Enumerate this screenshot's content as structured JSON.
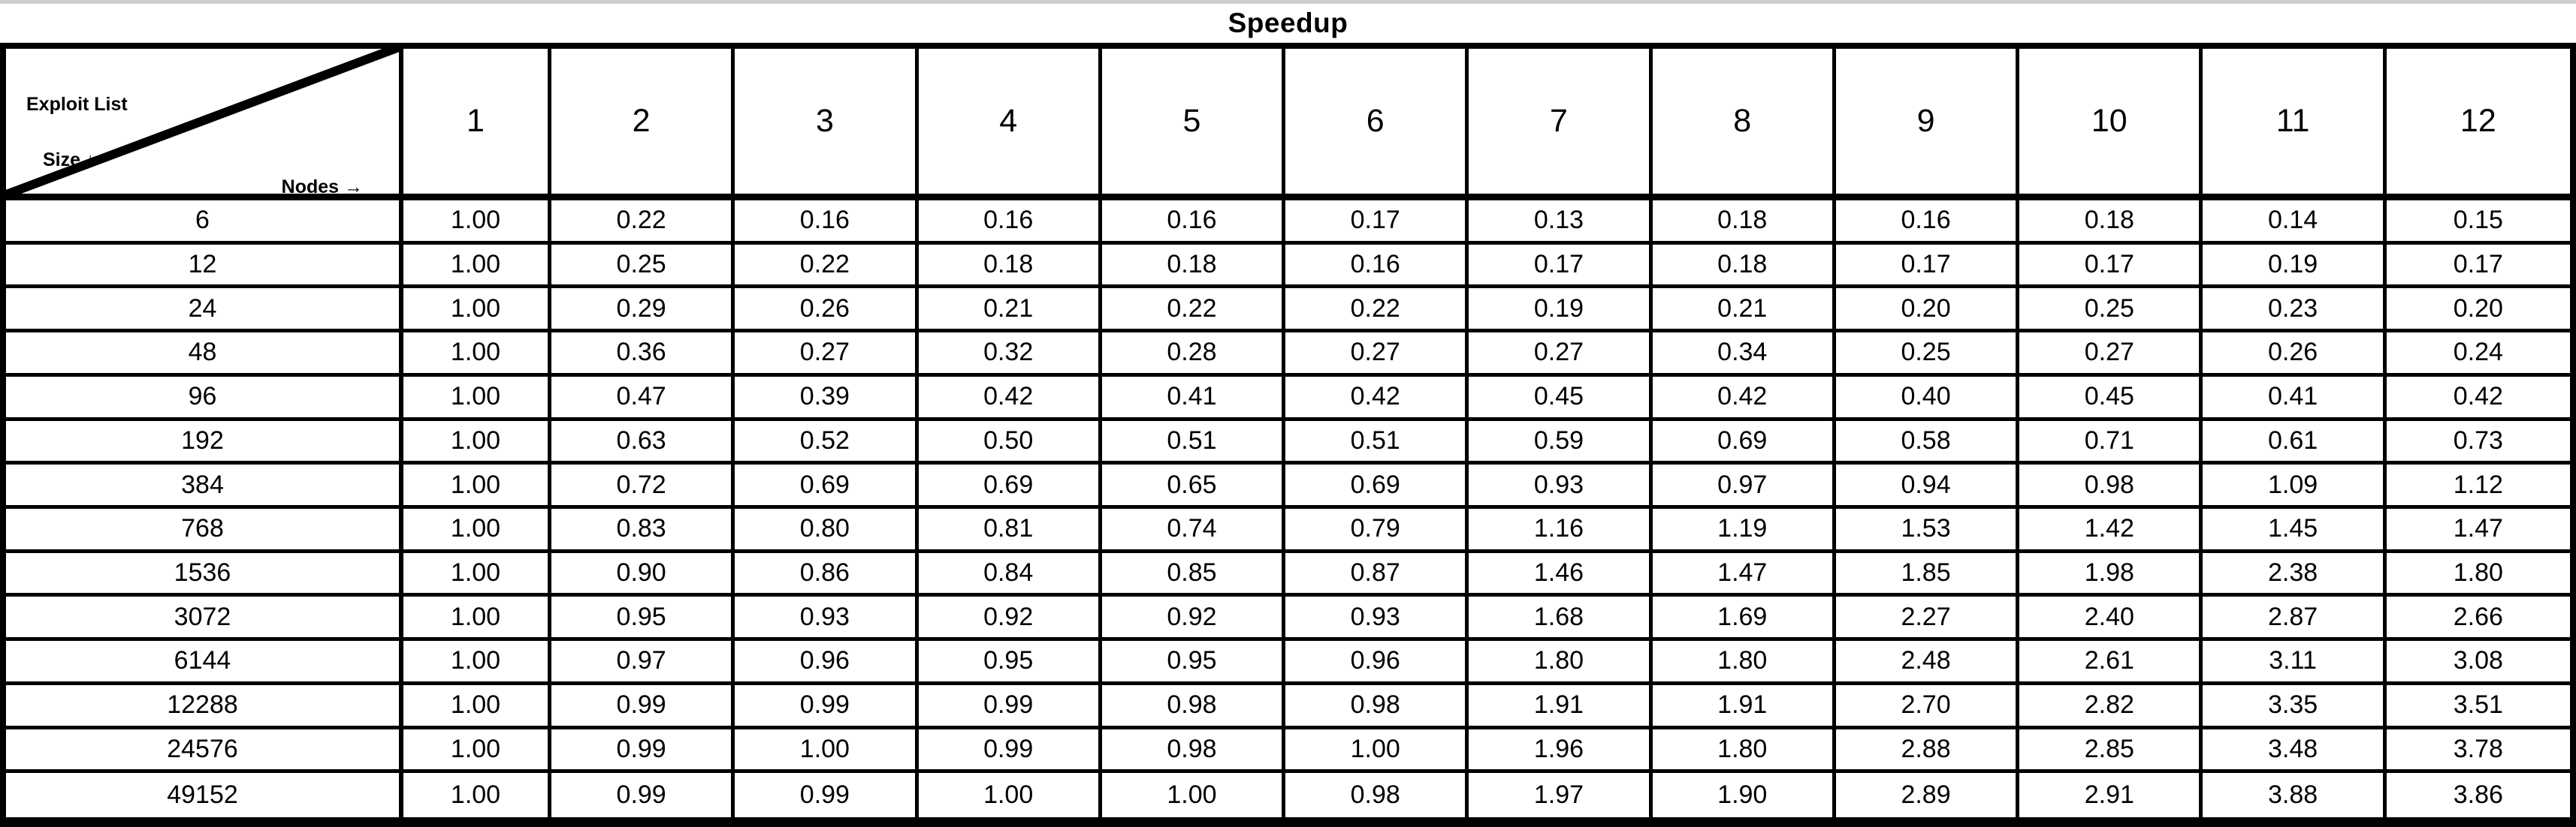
{
  "title": "Speedup",
  "corner": {
    "top_label": "Exploit List",
    "left_label": "Size ↓",
    "bottom_label": "Nodes →",
    "down_arrow_icon": "↓",
    "right_arrow_icon": "→"
  },
  "table": {
    "columns": [
      "1",
      "2",
      "3",
      "4",
      "5",
      "6",
      "7",
      "8",
      "9",
      "10",
      "11",
      "12"
    ],
    "rows": [
      {
        "size": "6",
        "values": [
          "1.00",
          "0.22",
          "0.16",
          "0.16",
          "0.16",
          "0.17",
          "0.13",
          "0.18",
          "0.16",
          "0.18",
          "0.14",
          "0.15"
        ]
      },
      {
        "size": "12",
        "values": [
          "1.00",
          "0.25",
          "0.22",
          "0.18",
          "0.18",
          "0.16",
          "0.17",
          "0.18",
          "0.17",
          "0.17",
          "0.19",
          "0.17"
        ]
      },
      {
        "size": "24",
        "values": [
          "1.00",
          "0.29",
          "0.26",
          "0.21",
          "0.22",
          "0.22",
          "0.19",
          "0.21",
          "0.20",
          "0.25",
          "0.23",
          "0.20"
        ]
      },
      {
        "size": "48",
        "values": [
          "1.00",
          "0.36",
          "0.27",
          "0.32",
          "0.28",
          "0.27",
          "0.27",
          "0.34",
          "0.25",
          "0.27",
          "0.26",
          "0.24"
        ]
      },
      {
        "size": "96",
        "values": [
          "1.00",
          "0.47",
          "0.39",
          "0.42",
          "0.41",
          "0.42",
          "0.45",
          "0.42",
          "0.40",
          "0.45",
          "0.41",
          "0.42"
        ]
      },
      {
        "size": "192",
        "values": [
          "1.00",
          "0.63",
          "0.52",
          "0.50",
          "0.51",
          "0.51",
          "0.59",
          "0.69",
          "0.58",
          "0.71",
          "0.61",
          "0.73"
        ]
      },
      {
        "size": "384",
        "values": [
          "1.00",
          "0.72",
          "0.69",
          "0.69",
          "0.65",
          "0.69",
          "0.93",
          "0.97",
          "0.94",
          "0.98",
          "1.09",
          "1.12"
        ]
      },
      {
        "size": "768",
        "values": [
          "1.00",
          "0.83",
          "0.80",
          "0.81",
          "0.74",
          "0.79",
          "1.16",
          "1.19",
          "1.53",
          "1.42",
          "1.45",
          "1.47"
        ]
      },
      {
        "size": "1536",
        "values": [
          "1.00",
          "0.90",
          "0.86",
          "0.84",
          "0.85",
          "0.87",
          "1.46",
          "1.47",
          "1.85",
          "1.98",
          "2.38",
          "1.80"
        ]
      },
      {
        "size": "3072",
        "values": [
          "1.00",
          "0.95",
          "0.93",
          "0.92",
          "0.92",
          "0.93",
          "1.68",
          "1.69",
          "2.27",
          "2.40",
          "2.87",
          "2.66"
        ]
      },
      {
        "size": "6144",
        "values": [
          "1.00",
          "0.97",
          "0.96",
          "0.95",
          "0.95",
          "0.96",
          "1.80",
          "1.80",
          "2.48",
          "2.61",
          "3.11",
          "3.08"
        ]
      },
      {
        "size": "12288",
        "values": [
          "1.00",
          "0.99",
          "0.99",
          "0.99",
          "0.98",
          "0.98",
          "1.91",
          "1.91",
          "2.70",
          "2.82",
          "3.35",
          "3.51"
        ]
      },
      {
        "size": "24576",
        "values": [
          "1.00",
          "0.99",
          "1.00",
          "0.99",
          "0.98",
          "1.00",
          "1.96",
          "1.80",
          "2.88",
          "2.85",
          "3.48",
          "3.78"
        ]
      },
      {
        "size": "49152",
        "values": [
          "1.00",
          "0.99",
          "0.99",
          "1.00",
          "1.00",
          "0.98",
          "1.97",
          "1.90",
          "2.89",
          "2.91",
          "3.88",
          "3.86"
        ]
      }
    ]
  },
  "colors": {
    "border": "#000000",
    "background": "#ffffff",
    "text": "#000000",
    "top_strip": "#cdcdcd"
  }
}
